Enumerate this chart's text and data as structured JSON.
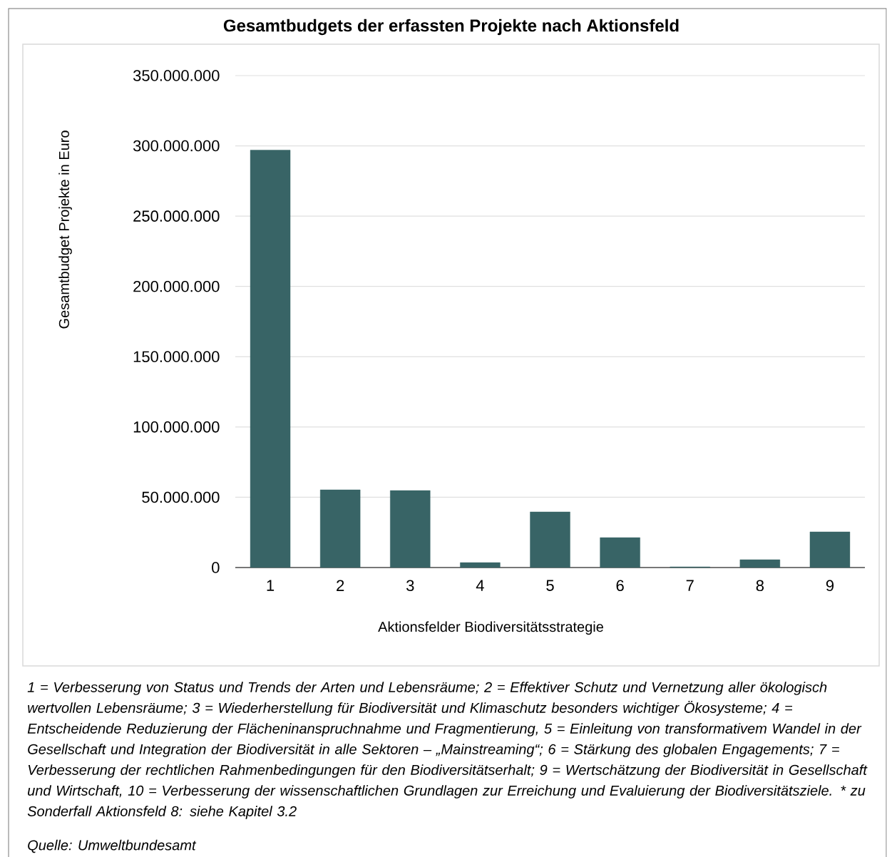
{
  "chart_data": {
    "type": "bar",
    "title": "Gesamtbudgets der erfassten Projekte nach Aktionsfeld",
    "xlabel": "Aktionsfelder Biodiversitätsstrategie",
    "ylabel": "Gesamtbudget Projekte in Euro",
    "categories": [
      "1",
      "2",
      "3",
      "4",
      "5",
      "6",
      "7",
      "8",
      "9"
    ],
    "values": [
      297000000,
      55300000,
      54800000,
      3500000,
      39600000,
      21300000,
      500000,
      5600000,
      25400000
    ],
    "color": "#386466",
    "ylim": [
      0,
      350000000
    ],
    "yticks": [
      {
        "value": 0,
        "label": "0"
      },
      {
        "value": 50000000,
        "label": "50.000.000"
      },
      {
        "value": 100000000,
        "label": "100.000.000"
      },
      {
        "value": 150000000,
        "label": "150.000.000"
      },
      {
        "value": 200000000,
        "label": "200.000.000"
      },
      {
        "value": 250000000,
        "label": "250.000.000"
      },
      {
        "value": 300000000,
        "label": "300.000.000"
      },
      {
        "value": 350000000,
        "label": "350.000.000"
      }
    ],
    "grid": "y",
    "annotations": [
      "1 = Verbesserung von Status und Trends der Arten und Lebensräume; 2 = Effektiver Schutz und Vernetzung aller ökologisch wertvollen Lebensräume; 3 = Wiederherstellung für Biodiversität und Klimaschutz besonders wichtiger Ökosysteme; 4 = Entscheidende Reduzierung der Flächeninanspruchnahme und Fragmentierung, 5 = Einleitung von transformativem Wandel in der Gesellschaft und Integration der Biodiversität in alle Sektoren – „Mainstreaming“; 6 = Stärkung des globalen Engagements; 7 = Verbesserung der rechtlichen Rahmenbedingungen für den Biodiversitätserhalt; 9 = Wertschätzung der Biodiversität in Gesellschaft und Wirtschaft, 10 = Verbesserung der wissenschaftlichen Grundlagen zur Erreichung und Evaluierung der Biodiversitätsziele. * zu Sonderfall Aktionsfeld 8: siehe Kapitel 3.2",
      "Quelle: Umweltbundesamt"
    ]
  }
}
